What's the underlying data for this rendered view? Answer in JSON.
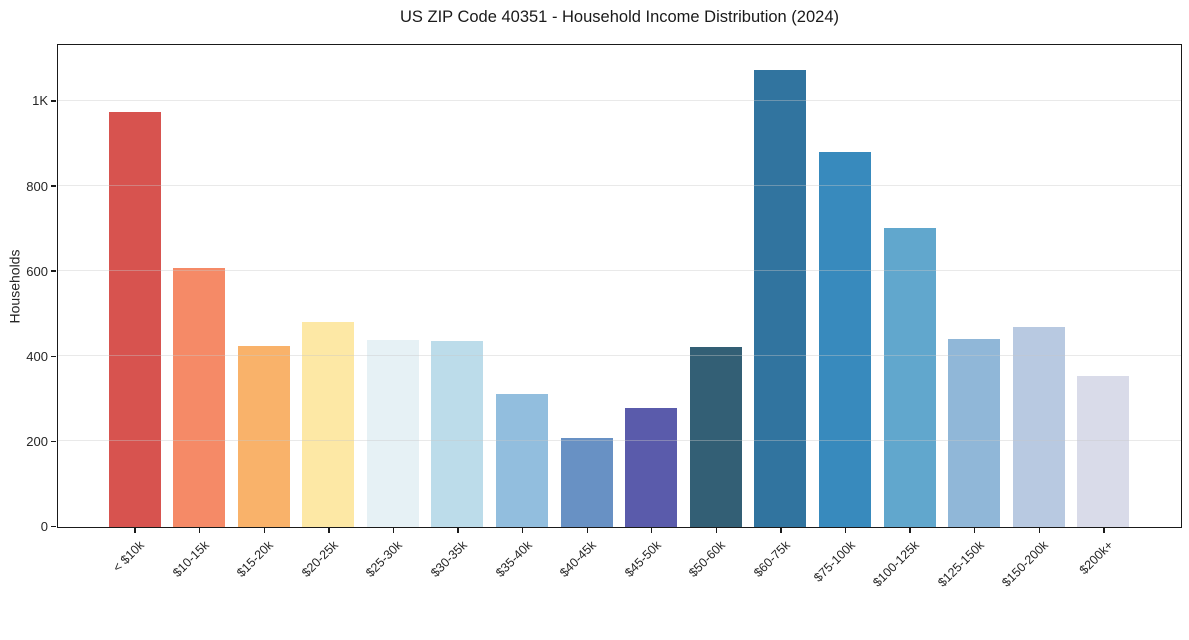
{
  "figure": {
    "background": "#ffffff"
  },
  "chart_data": {
    "type": "bar",
    "title": "US ZIP Code 40351 - Household Income Distribution (2024)",
    "xlabel": "",
    "ylabel": "Households",
    "categories": [
      "< $10k",
      "$10-15k",
      "$15-20k",
      "$20-25k",
      "$25-30k",
      "$30-35k",
      "$35-40k",
      "$40-45k",
      "$45-50k",
      "$50-60k",
      "$60-75k",
      "$75-100k",
      "$100-125k",
      "$125-150k",
      "$150-200k",
      "$200k+"
    ],
    "values": [
      975,
      608,
      425,
      481,
      440,
      437,
      313,
      210,
      280,
      423,
      1075,
      882,
      702,
      442,
      470,
      355
    ],
    "bar_colors": [
      "#d7534f",
      "#f58a67",
      "#f9b26a",
      "#fde8a5",
      "#e6f1f5",
      "#bcdcea",
      "#92bede",
      "#6891c4",
      "#5a5bab",
      "#335f75",
      "#31749f",
      "#388abd",
      "#61a7cd",
      "#90b7d8",
      "#b8c9e1",
      "#d9dbe9"
    ],
    "ylim": [
      0,
      1130
    ],
    "ytick_values": [
      0,
      200,
      400,
      600,
      800,
      1000
    ],
    "ytick_labels": [
      "0",
      "200",
      "400",
      "600",
      "800",
      "1K"
    ],
    "x_tick_rotation_deg": 45,
    "grid": "horizontal lines at y ticks",
    "legend": "none"
  },
  "style": {
    "grid_color": "#e6e6e6",
    "spine_color": "#1a1a1a",
    "text_color": "#262626"
  }
}
